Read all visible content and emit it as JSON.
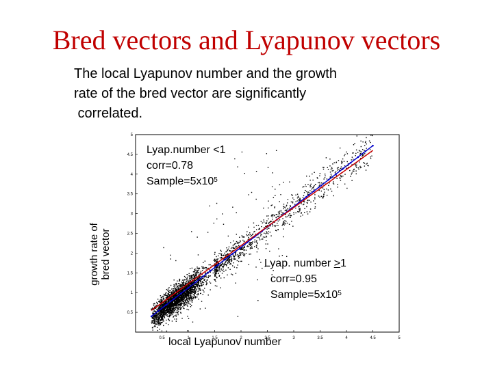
{
  "slide": {
    "title": "Bred vectors and Lyapunov vectors",
    "intro_lines": [
      "The local Lyapunov number and the growth",
      "rate of the bred vector are significantly",
      " correlated."
    ]
  },
  "chart_data": {
    "type": "scatter",
    "xlabel": "local Lyapunov number",
    "ylabel_lines": [
      "growth rate of",
      "bred vector"
    ],
    "xlim": [
      0,
      5
    ],
    "ylim": [
      0,
      5
    ],
    "x_ticks": [
      "0.5",
      "1",
      "1.5",
      "2",
      "2.5",
      "3",
      "3.5",
      "4",
      "4.5",
      "5"
    ],
    "y_ticks": [
      "0.5",
      "1",
      "1.5",
      "2",
      "2.5",
      "3",
      "3.5",
      "4",
      "4.5",
      "5"
    ],
    "point_cloud": {
      "color": "#000000",
      "dense_region": {
        "x": [
          0.3,
          1.8
        ],
        "y": [
          0.4,
          2.0
        ]
      },
      "sparse_region": {
        "x": [
          1.8,
          4.5
        ],
        "y": [
          1.8,
          4.7
        ]
      }
    },
    "series": [
      {
        "color": "#0000cc",
        "x": [
          0.3,
          4.5
        ],
        "y": [
          0.4,
          4.72
        ],
        "markers": true
      },
      {
        "color": "#cc0000",
        "x": [
          0.3,
          4.5
        ],
        "y": [
          0.55,
          4.6
        ],
        "markers": false
      }
    ],
    "annotations": [
      {
        "lines": [
          {
            "text": "Lyap.number <1"
          },
          {
            "text": " corr=0.78"
          },
          {
            "text": "Sample=5x10",
            "sup": "5"
          }
        ]
      },
      {
        "lines": [
          {
            "text": "Lyap. number ",
            "tail": "1",
            "underlined": ">"
          },
          {
            "text": "  corr=0.95"
          },
          {
            "text": "  Sample=5x10",
            "sup": "5"
          }
        ]
      }
    ]
  }
}
